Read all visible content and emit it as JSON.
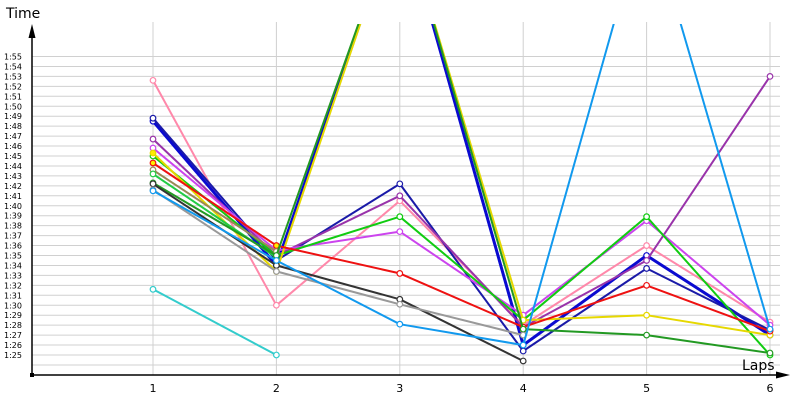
{
  "chart_data": {
    "type": "line",
    "title": "",
    "xlabel": "Laps",
    "ylabel": "Time",
    "x": [
      1,
      2,
      3,
      4,
      5,
      6
    ],
    "y_ticks": [
      "1:25",
      "1:26",
      "1:27",
      "1:28",
      "1:29",
      "1:30",
      "1:31",
      "1:32",
      "1:33",
      "1:34",
      "1:35",
      "1:36",
      "1:37",
      "1:38",
      "1:39",
      "1:40",
      "1:41",
      "1:42",
      "1:43",
      "1:44",
      "1:45",
      "1:46",
      "1:47",
      "1:48",
      "1:49",
      "1:50",
      "1:51",
      "1:52",
      "1:53",
      "1:54",
      "1:55"
    ],
    "ylim_seconds": [
      83,
      116
    ],
    "grid": "horizontal and vertical",
    "legend": "none",
    "units": "seconds",
    "series": [
      {
        "name": "pink",
        "color": "#ff88aa",
        "values": [
          112.6,
          90.0,
          100.5,
          88.0,
          96.0,
          88.3
        ]
      },
      {
        "name": "blue",
        "color": "#0a0ad0",
        "values": [
          108.5,
          94.0,
          130.0,
          86.0,
          95.0,
          87.0
        ]
      },
      {
        "name": "navy",
        "color": "#1a1aa8",
        "values": [
          108.8,
          94.5,
          102.2,
          85.4,
          93.7,
          87.5
        ]
      },
      {
        "name": "purple",
        "color": "#9933aa",
        "values": [
          106.7,
          95.0,
          101.0,
          87.8,
          94.5,
          113.0
        ]
      },
      {
        "name": "violet",
        "color": "#cc44ee",
        "values": [
          105.8,
          95.5,
          97.4,
          89.0,
          98.5,
          88.0
        ]
      },
      {
        "name": "green",
        "color": "#11cc11",
        "values": [
          105.0,
          95.0,
          98.9,
          88.5,
          98.9,
          85.0
        ]
      },
      {
        "name": "yellow",
        "color": "#e6d800",
        "values": [
          105.3,
          93.4,
          130.0,
          88.5,
          89.0,
          87.0
        ]
      },
      {
        "name": "red",
        "color": "#ee1111",
        "values": [
          104.3,
          96.0,
          93.2,
          87.8,
          92.0,
          87.4
        ]
      },
      {
        "name": "olive",
        "color": "#998855",
        "values": [
          103.6,
          95.4,
          null,
          87.5,
          null,
          null
        ]
      },
      {
        "name": "lime-green",
        "color": "#22cc44",
        "values": [
          103.2,
          94.8,
          null,
          null,
          null,
          null
        ]
      },
      {
        "name": "dark-green",
        "color": "#229922",
        "values": [
          102.3,
          95.0,
          130.0,
          87.6,
          87.0,
          85.2
        ]
      },
      {
        "name": "black",
        "color": "#333333",
        "values": [
          102.2,
          94.0,
          90.6,
          84.4,
          null,
          null
        ]
      },
      {
        "name": "gray",
        "color": "#999999",
        "values": [
          101.6,
          93.4,
          90.1,
          87.0,
          null,
          null
        ]
      },
      {
        "name": "azure",
        "color": "#1199ee",
        "values": [
          101.5,
          94.5,
          88.1,
          86.0,
          130.0,
          87.6
        ]
      },
      {
        "name": "cyan",
        "color": "#33cccc",
        "values": [
          91.6,
          85.0,
          null,
          null,
          null,
          null
        ]
      }
    ]
  },
  "axes": {
    "x_title": "Laps",
    "y_title": "Time",
    "x_tick_labels": [
      "1",
      "2",
      "3",
      "4",
      "5",
      "6"
    ]
  }
}
